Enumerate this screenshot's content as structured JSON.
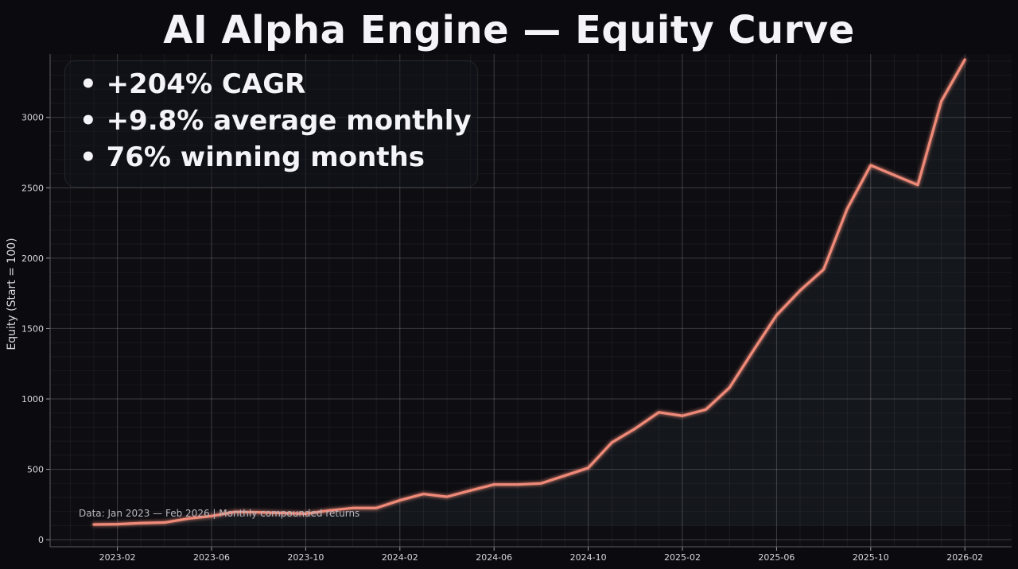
{
  "chart_data": {
    "type": "line",
    "title": "AI Alpha Engine — Equity Curve",
    "ylabel": "Equity (Start = 100)",
    "xlabel": "",
    "ylim": [
      -50,
      3450
    ],
    "yticks": [
      0,
      500,
      1000,
      1500,
      2000,
      2500,
      3000
    ],
    "x_tick_labels": [
      "2023-02",
      "2023-06",
      "2023-10",
      "2024-02",
      "2024-06",
      "2024-10",
      "2025-02",
      "2025-06",
      "2025-10",
      "2026-02"
    ],
    "grid": true,
    "series": [
      {
        "x": [
          "2023-01",
          "2023-02",
          "2023-03",
          "2023-04",
          "2023-05",
          "2023-06",
          "2023-07",
          "2023-08",
          "2023-09",
          "2023-10",
          "2023-11",
          "2023-12",
          "2024-01",
          "2024-02",
          "2024-03",
          "2024-04",
          "2024-05",
          "2024-06",
          "2024-07",
          "2024-08",
          "2024-09",
          "2024-10",
          "2024-11",
          "2024-12",
          "2025-01",
          "2025-02",
          "2025-03",
          "2025-04",
          "2025-05",
          "2025-06",
          "2025-07",
          "2025-08",
          "2025-09",
          "2025-10",
          "2025-11",
          "2025-12",
          "2026-01",
          "2026-02"
        ],
        "values": [
          108,
          110,
          118,
          122,
          150,
          168,
          198,
          195,
          190,
          185,
          208,
          225,
          225,
          280,
          325,
          305,
          350,
          392,
          392,
          400,
          455,
          510,
          690,
          790,
          905,
          880,
          925,
          1080,
          1340,
          1595,
          1770,
          1920,
          2350,
          2660,
          2590,
          2520,
          3115,
          3410
        ]
      }
    ],
    "line_color": "#f08a78",
    "background_color": "#0b0b0f"
  },
  "highlights": [
    "• +204% CAGR",
    "• +9.8% average monthly",
    "• 76% winning months"
  ],
  "footnote": "Data: Jan 2023 — Feb 2026  |  Monthly compounded returns"
}
